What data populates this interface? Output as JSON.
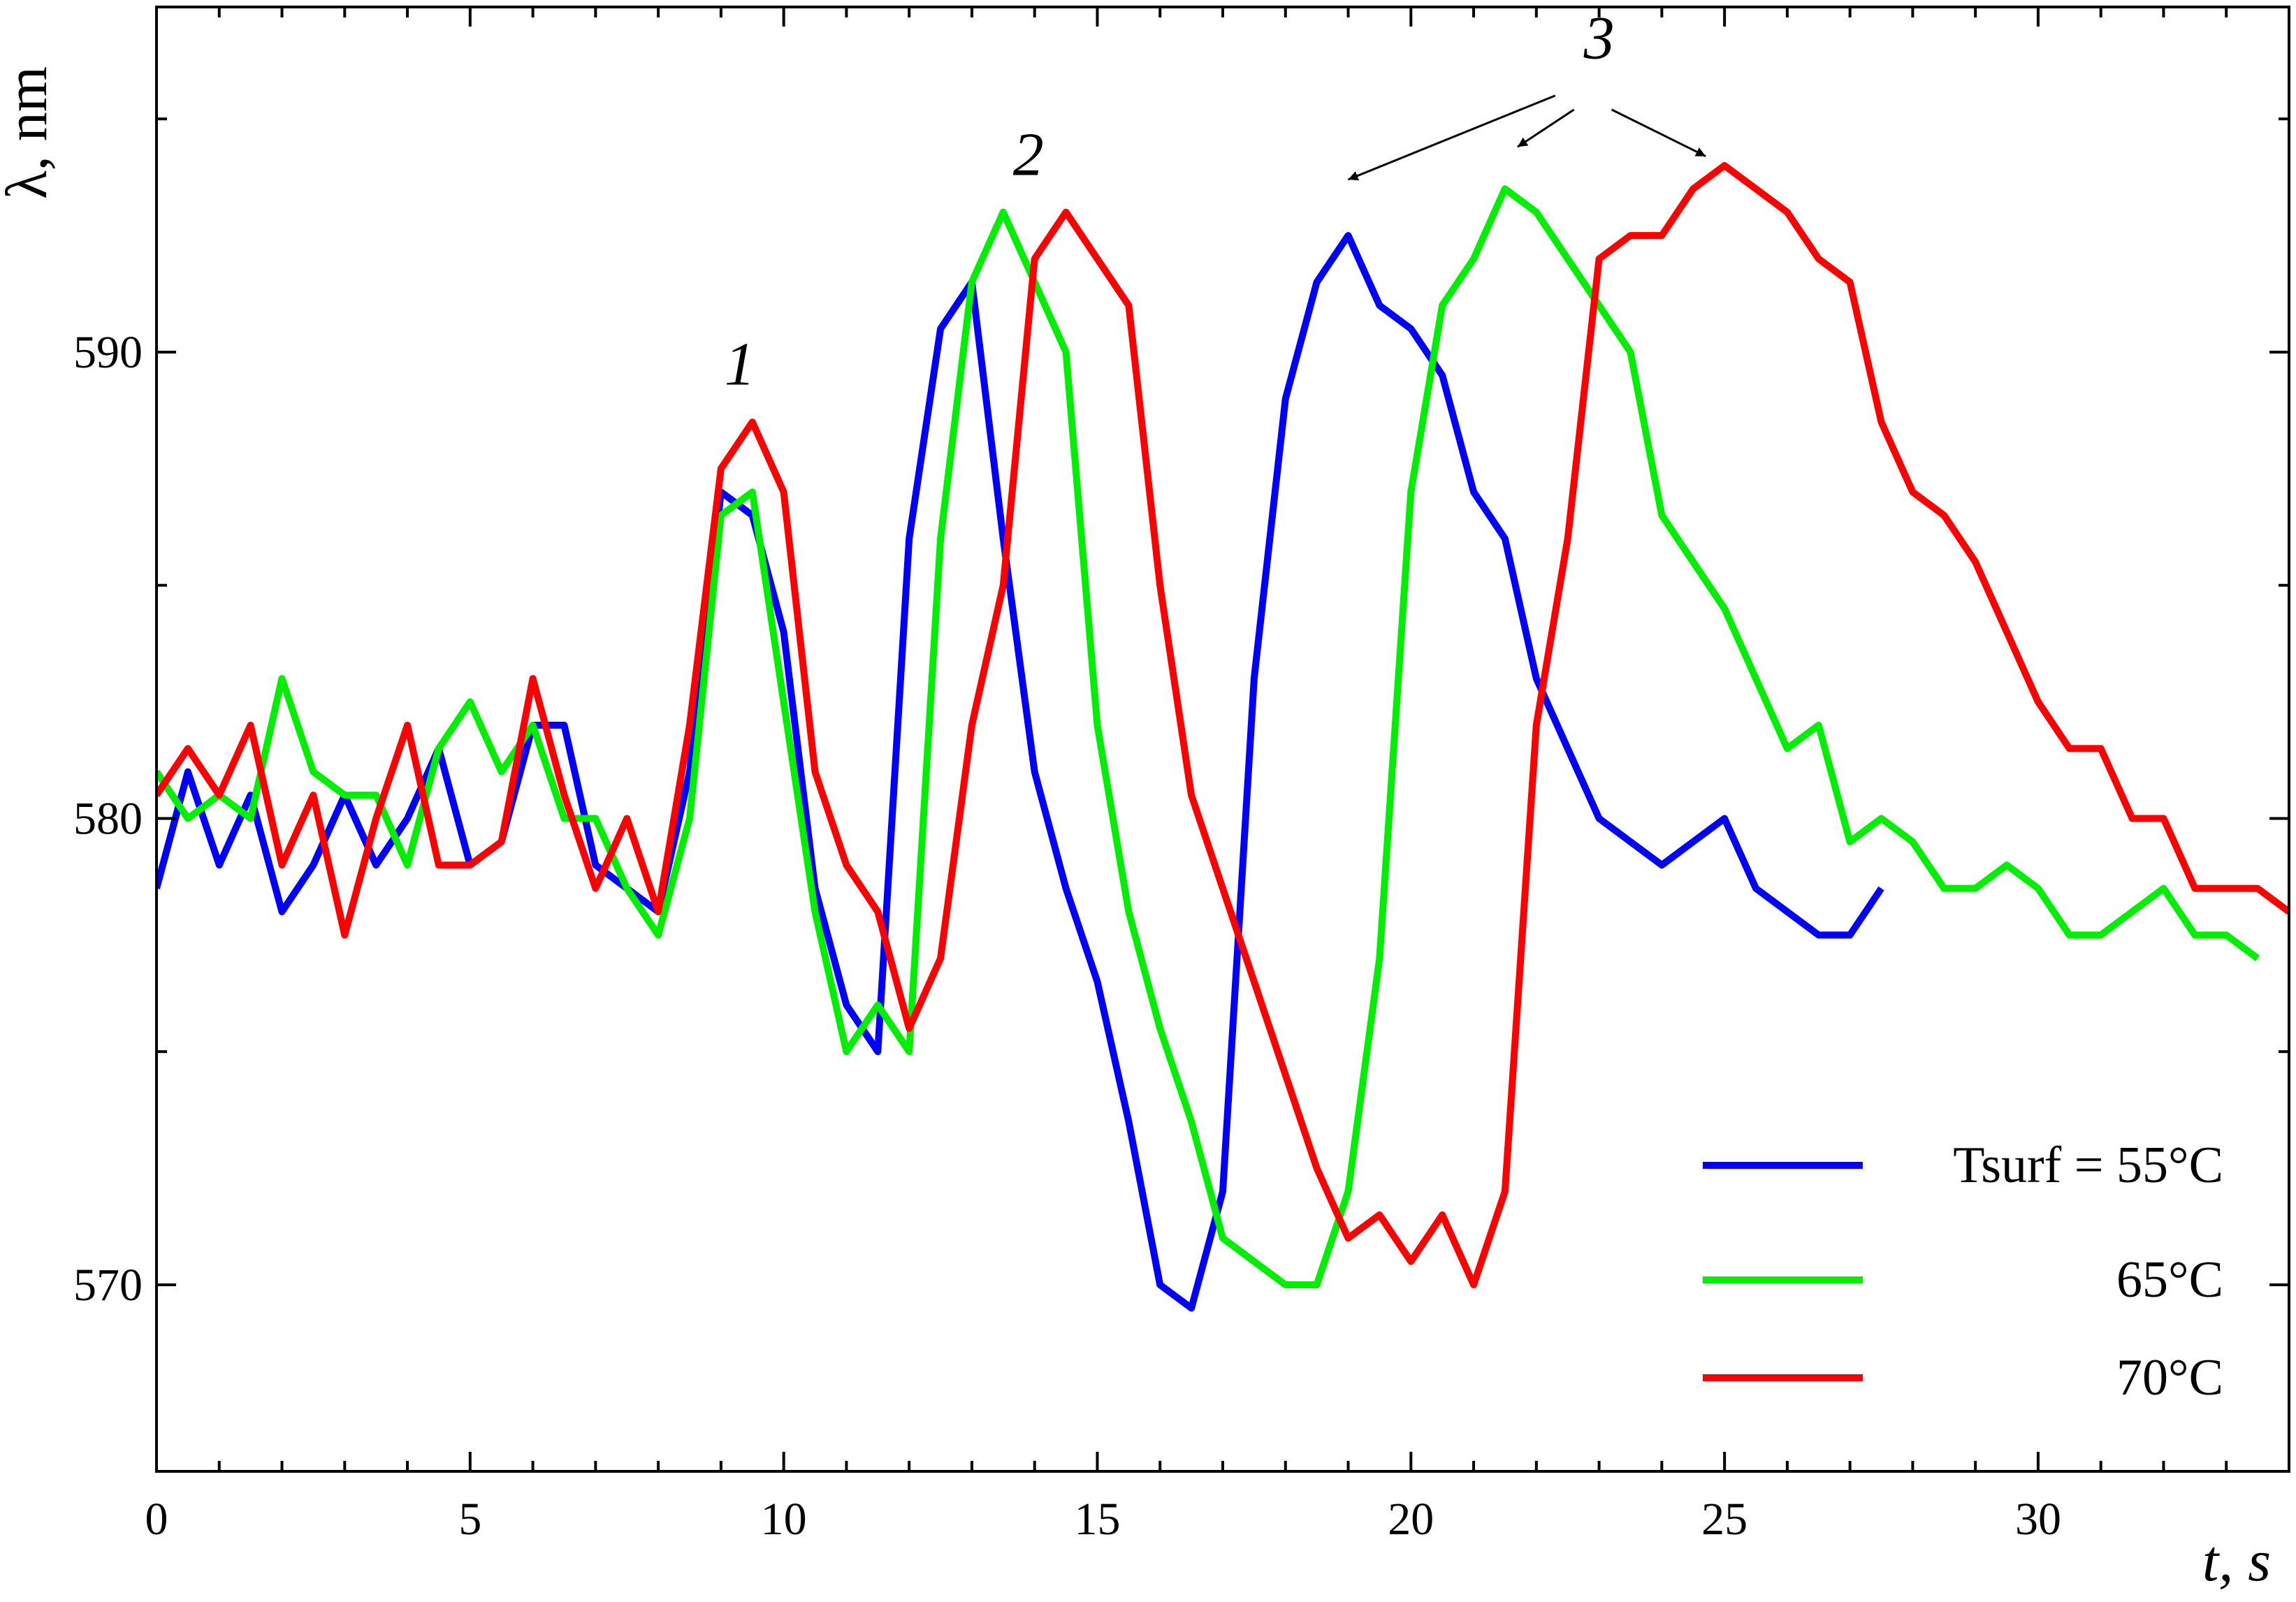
{
  "chart_data": {
    "type": "line",
    "x_label": "t, s",
    "y_label": "λ, nm",
    "xlim": [
      0,
      34
    ],
    "ylim": [
      566,
      597.4
    ],
    "xticks": [
      0,
      5,
      10,
      15,
      20,
      25,
      30
    ],
    "yticks": [
      570,
      580,
      590
    ],
    "xminorticks": [
      1,
      2,
      3,
      4,
      6,
      7,
      8,
      9,
      11,
      12,
      13,
      14,
      16,
      17,
      18,
      19,
      21,
      22,
      23,
      24,
      26,
      27,
      28,
      29,
      31,
      32,
      33
    ],
    "yminorticks": [
      575,
      585,
      595
    ],
    "annotations": [
      "1",
      "2",
      "3"
    ],
    "legend": "lower right",
    "x": [
      0,
      0.5,
      1,
      1.5,
      2,
      2.5,
      3,
      3.5,
      4,
      4.5,
      5,
      5.5,
      6,
      6.5,
      7,
      7.5,
      8,
      8.5,
      9,
      9.5,
      10,
      10.5,
      11,
      11.5,
      12,
      12.5,
      13,
      13.5,
      14,
      14.5,
      15,
      15.5,
      16,
      16.5,
      17,
      17.5,
      18,
      18.5,
      19,
      19.5,
      20,
      20.5,
      21,
      21.5,
      22,
      22.5,
      23,
      23.5,
      24,
      24.5,
      25,
      25.5,
      26,
      26.5,
      27,
      27.5,
      28,
      28.5,
      29,
      29.5,
      30,
      30.5,
      31,
      31.5,
      32,
      32.5,
      33,
      33.5,
      34
    ],
    "series": [
      {
        "name": "Tsurf = 55°C",
        "color": "#0000ff",
        "values": [
          578.5,
          581,
          579,
          580.5,
          578,
          579,
          580.5,
          579,
          580,
          581.5,
          579,
          579.5,
          582,
          582,
          579,
          578.5,
          578,
          581,
          587,
          586.5,
          584,
          578.5,
          576,
          575,
          586,
          590.5,
          591.5,
          586,
          581,
          578.5,
          576.5,
          573.5,
          570,
          569.5,
          572,
          583,
          589,
          591.5,
          592.5,
          591,
          590.5,
          589.5,
          587,
          586,
          583,
          581.5,
          580,
          579.5,
          579,
          579.5,
          580,
          578.5,
          578,
          577.5,
          577.5,
          578.5,
          null,
          null,
          null,
          null,
          null,
          null,
          null,
          null,
          null,
          null,
          null,
          null,
          null
        ]
      },
      {
        "name": "65°C",
        "color": "#00ee00",
        "values": [
          581,
          580,
          580.5,
          580,
          583,
          581,
          580.5,
          580.5,
          579,
          581.5,
          582.5,
          581,
          582,
          580,
          580,
          578.5,
          577.5,
          580,
          586.5,
          587,
          582.5,
          578,
          575,
          576,
          575,
          586,
          591.5,
          593,
          591.5,
          590,
          582,
          578,
          575.5,
          573.5,
          571,
          570.5,
          570,
          570,
          572,
          577,
          587,
          591,
          592,
          593.5,
          593,
          592,
          591,
          590,
          586.5,
          585.5,
          584.5,
          583,
          581.5,
          582,
          579.5,
          580,
          579.5,
          578.5,
          578.5,
          579,
          578.5,
          577.5,
          577.5,
          578,
          578.5,
          577.5,
          577.5,
          577,
          null
        ]
      },
      {
        "name": "70°C",
        "color": "#ff0000",
        "values": [
          580.5,
          581.5,
          580.5,
          582,
          579,
          580.5,
          577.5,
          580,
          582,
          579,
          579,
          579.5,
          583,
          580.5,
          578.5,
          580,
          578,
          582,
          587.5,
          588.5,
          587,
          581,
          579,
          578,
          575.5,
          577,
          582,
          585,
          592,
          593,
          592,
          591,
          585,
          580.5,
          578.5,
          576.5,
          574.5,
          572.5,
          571,
          571.5,
          570.5,
          571.5,
          570,
          572,
          582,
          586,
          592,
          592.5,
          592.5,
          593.5,
          594,
          593.5,
          593,
          592,
          591.5,
          588.5,
          587,
          586.5,
          585.5,
          584,
          582.5,
          581.5,
          581.5,
          580,
          580,
          578.5,
          578.5,
          578.5,
          578
        ]
      }
    ]
  }
}
